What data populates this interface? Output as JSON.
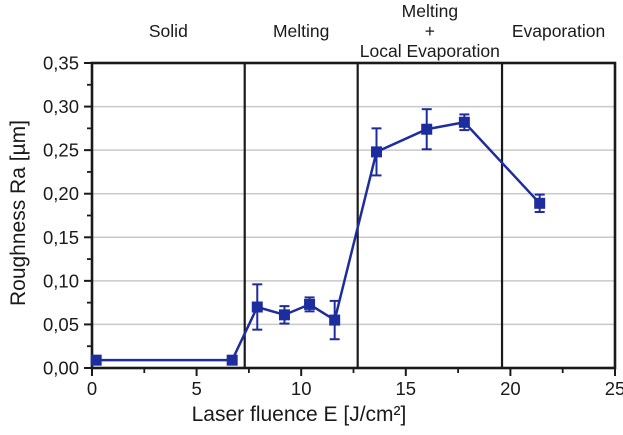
{
  "chart_data": {
    "type": "line",
    "title": "",
    "xlabel": "Laser fluence E [J/cm²]",
    "ylabel": "Roughness Ra [µm]",
    "xlim": [
      0,
      25
    ],
    "ylim": [
      0,
      0.35
    ],
    "x_ticks": [
      0,
      5,
      10,
      15,
      20,
      25
    ],
    "x_tick_labels": [
      "0",
      "5",
      "10",
      "15",
      "20",
      "25"
    ],
    "x_minor_step": 2.5,
    "y_ticks": [
      0,
      0.05,
      0.1,
      0.15,
      0.2,
      0.25,
      0.3,
      0.35
    ],
    "y_tick_labels": [
      "0,00",
      "0,05",
      "0,10",
      "0,15",
      "0,20",
      "0,25",
      "0,30",
      "0,35"
    ],
    "y_minor_step": 0.025,
    "grid": "horizontal-major-only",
    "legend": "none",
    "colors": {
      "series": "#1e2d9e",
      "grid": "#c9c9c9",
      "axis": "#1a1a1a",
      "background": "#ffffff"
    },
    "series": [
      {
        "name": "Roughness Ra",
        "marker": "square",
        "points": [
          {
            "x": 0.2,
            "y": 0.009,
            "yerr": 0
          },
          {
            "x": 6.7,
            "y": 0.009,
            "yerr": 0
          },
          {
            "x": 7.9,
            "y": 0.07,
            "yerr": 0.026
          },
          {
            "x": 9.2,
            "y": 0.061,
            "yerr": 0.01
          },
          {
            "x": 10.4,
            "y": 0.073,
            "yerr": 0.008
          },
          {
            "x": 11.6,
            "y": 0.055,
            "yerr": 0.022
          },
          {
            "x": 13.6,
            "y": 0.248,
            "yerr": 0.027
          },
          {
            "x": 16.0,
            "y": 0.274,
            "yerr": 0.023
          },
          {
            "x": 17.8,
            "y": 0.282,
            "yerr": 0.009
          },
          {
            "x": 21.4,
            "y": 0.189,
            "yerr": 0.01
          }
        ]
      }
    ],
    "regions": [
      {
        "label_lines": [
          "Solid"
        ],
        "from": 0,
        "to": 7.3
      },
      {
        "label_lines": [
          "Melting"
        ],
        "from": 7.3,
        "to": 12.7
      },
      {
        "label_lines": [
          "Melting",
          "+",
          "Local Evaporation"
        ],
        "from": 12.7,
        "to": 19.6
      },
      {
        "label_lines": [
          "Evaporation"
        ],
        "from": 19.6,
        "to": 25
      }
    ],
    "boundary_lines_x": [
      7.3,
      12.7,
      19.6
    ]
  }
}
